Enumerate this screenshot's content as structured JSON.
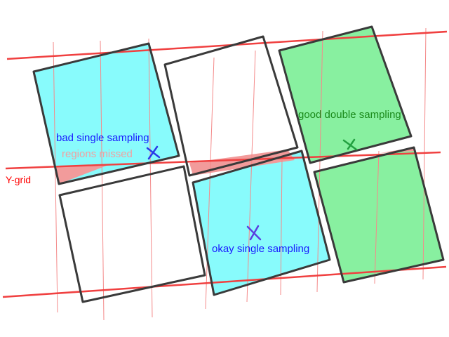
{
  "labels": {
    "bad_single": "bad single sampling",
    "regions_missed": "regions missed",
    "good_double": "good double sampling",
    "okay_single": "okay single sampling",
    "y_grid": "Y-grid"
  },
  "colors": {
    "cyan": "#88fbfc",
    "green": "#88f0a0",
    "missed": "#f29b9b",
    "outline": "#3a3a3a",
    "grid_major": "#f04040",
    "grid_minor": "#f48a8a",
    "blue_text": "#1a1aff",
    "pink_text": "#f2a0a0",
    "green_text": "#1a8a1a",
    "red_text": "#ff0000",
    "blue_cross": "#2a3ae8",
    "purple_cross": "#5a3ee0",
    "green_cross": "#22a040"
  }
}
